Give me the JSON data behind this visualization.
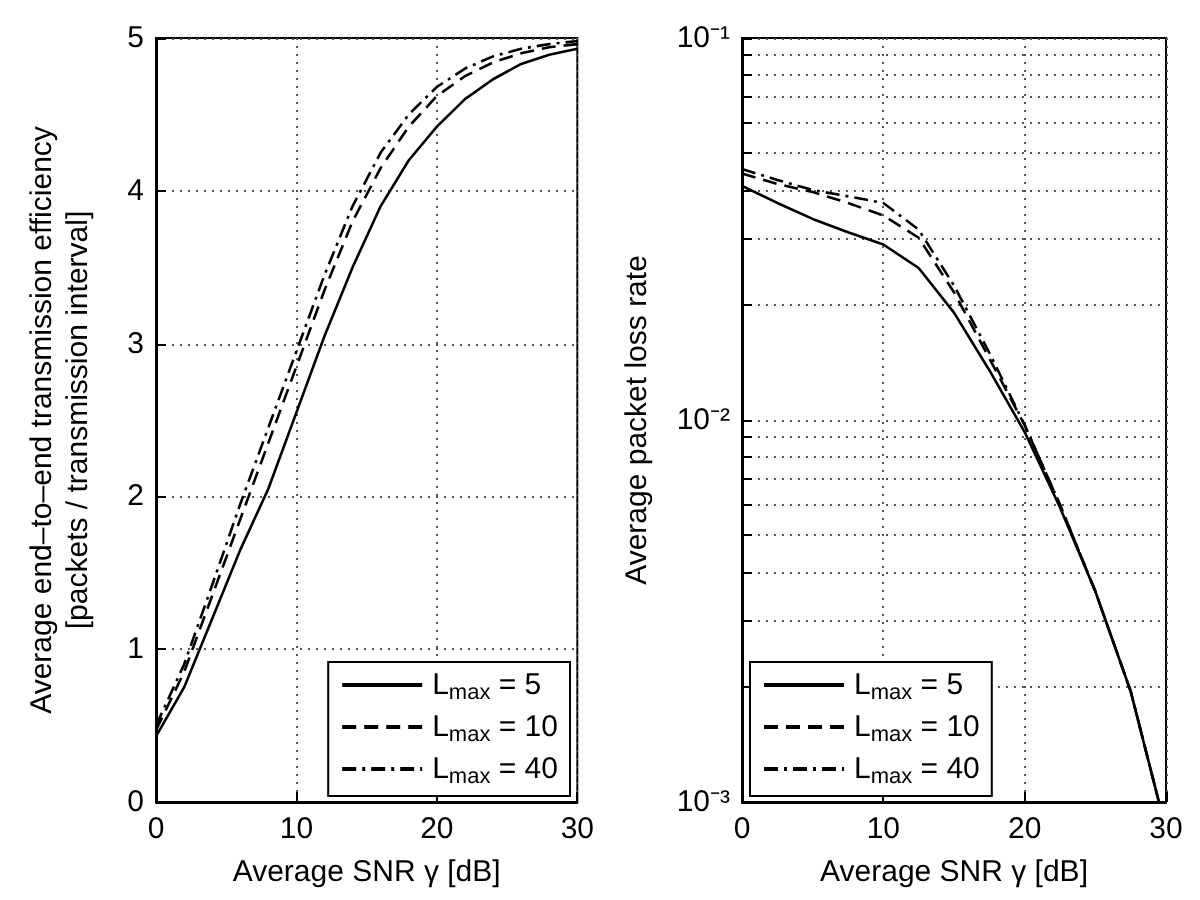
{
  "chart_data": [
    {
      "type": "line",
      "xlabel": "Average SNR γ [dB]",
      "ylabel": "Average end–to–end transmission efficiency\n[packets / transmission interval]",
      "xlim": [
        0,
        30
      ],
      "ylim": [
        0,
        5
      ],
      "xticks": [
        0,
        10,
        20,
        30
      ],
      "yticks": [
        0,
        1,
        2,
        3,
        4,
        5
      ],
      "grid": true,
      "legend": "bottom right",
      "marker": "none",
      "series": [
        {
          "name": "L$_{max}$ = 5",
          "color": "#000000",
          "line_style": "solid",
          "x": [
            0,
            2,
            4,
            6,
            8,
            10,
            12,
            14,
            16,
            18,
            20,
            22,
            24,
            26,
            28,
            30
          ],
          "values": [
            0.43,
            0.75,
            1.2,
            1.65,
            2.05,
            2.55,
            3.05,
            3.5,
            3.9,
            4.2,
            4.42,
            4.6,
            4.73,
            4.83,
            4.89,
            4.93
          ]
        },
        {
          "name": "L$_{max}$ = 10",
          "color": "#000000",
          "line_style": "dashed",
          "x": [
            0,
            2,
            4,
            6,
            8,
            10,
            12,
            14,
            16,
            18,
            20,
            22,
            24,
            26,
            28,
            30
          ],
          "values": [
            0.47,
            0.85,
            1.35,
            1.85,
            2.35,
            2.85,
            3.35,
            3.8,
            4.15,
            4.42,
            4.62,
            4.75,
            4.84,
            4.9,
            4.94,
            4.96
          ]
        },
        {
          "name": "L$_{max}$ = 40",
          "color": "#000000",
          "line_style": "dashdot",
          "x": [
            0,
            2,
            4,
            6,
            8,
            10,
            12,
            14,
            16,
            18,
            20,
            22,
            24,
            26,
            28,
            30
          ],
          "values": [
            0.5,
            0.9,
            1.42,
            1.95,
            2.45,
            2.95,
            3.45,
            3.9,
            4.25,
            4.5,
            4.68,
            4.8,
            4.88,
            4.93,
            4.96,
            4.98
          ]
        }
      ]
    },
    {
      "type": "line",
      "xlabel": "Average SNR γ [dB]",
      "ylabel": "Average packet loss rate",
      "log": "y",
      "xlim": [
        0,
        30
      ],
      "ylim": [
        0.001,
        0.1
      ],
      "xticks": [
        0,
        10,
        20,
        30
      ],
      "yticks": [
        {
          "value": 0.001,
          "label": "10⁻³"
        },
        {
          "value": 0.002,
          "label": null
        },
        {
          "value": 0.003,
          "label": null
        },
        {
          "value": 0.004,
          "label": null
        },
        {
          "value": 0.005,
          "label": null
        },
        {
          "value": 0.006,
          "label": null
        },
        {
          "value": 0.007,
          "label": null
        },
        {
          "value": 0.008,
          "label": null
        },
        {
          "value": 0.009,
          "label": null
        },
        {
          "value": 0.01,
          "label": "10⁻²"
        },
        {
          "value": 0.02,
          "label": null
        },
        {
          "value": 0.03,
          "label": null
        },
        {
          "value": 0.04,
          "label": null
        },
        {
          "value": 0.05,
          "label": null
        },
        {
          "value": 0.06,
          "label": null
        },
        {
          "value": 0.07,
          "label": null
        },
        {
          "value": 0.08,
          "label": null
        },
        {
          "value": 0.09,
          "label": null
        },
        {
          "value": 0.1,
          "label": "10⁻¹"
        }
      ],
      "grid": true,
      "legend": "bottom left",
      "marker": "none",
      "series": [
        {
          "name": "L$_{max}$ = 5",
          "color": "#000000",
          "line_style": "solid",
          "x": [
            0,
            2.5,
            5,
            7.5,
            10,
            12.5,
            15,
            17.5,
            20,
            22.5,
            25,
            27.5,
            29.5
          ],
          "values": [
            0.041,
            0.037,
            0.0336,
            0.031,
            0.0288,
            0.025,
            0.0191,
            0.0135,
            0.0093,
            0.0059,
            0.00356,
            0.00195,
            0.001
          ]
        },
        {
          "name": "L$_{max}$ = 10",
          "color": "#000000",
          "line_style": "dashed",
          "x": [
            0,
            2.5,
            5,
            7.5,
            10,
            12.5,
            15,
            17.5,
            20,
            22.5,
            25,
            27.5,
            29.5
          ],
          "values": [
            0.0442,
            0.0415,
            0.0395,
            0.037,
            0.0343,
            0.03,
            0.0216,
            0.0145,
            0.0097,
            0.006,
            0.00356,
            0.00195,
            0.001
          ]
        },
        {
          "name": "L$_{max}$ = 40",
          "color": "#000000",
          "line_style": "dashdot",
          "x": [
            0,
            2.5,
            5,
            7.5,
            10,
            12.5,
            15,
            17.5,
            20,
            22.5,
            25,
            27.5,
            29.5
          ],
          "values": [
            0.0454,
            0.0425,
            0.04,
            0.0385,
            0.037,
            0.0315,
            0.0225,
            0.015,
            0.0097,
            0.006,
            0.00356,
            0.00195,
            0.001
          ]
        }
      ]
    }
  ]
}
